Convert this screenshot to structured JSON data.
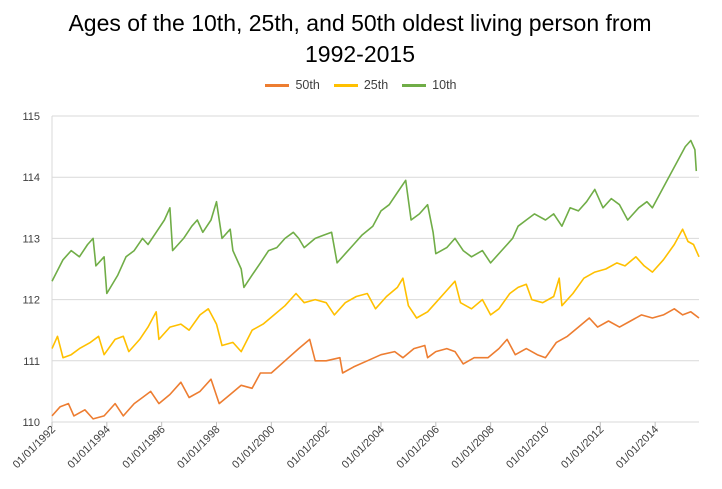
{
  "chart_data": {
    "type": "line",
    "title_lines": [
      "Ages of the 10th, 25th, and 50th oldest living person from",
      "1992-2015"
    ],
    "xlabel": "",
    "ylabel": "",
    "ylim": [
      110,
      115
    ],
    "y_ticks": [
      "110",
      "111",
      "112",
      "113",
      "114",
      "115"
    ],
    "x_ticks": [
      "01/01/1992",
      "01/01/1994",
      "01/01/1996",
      "01/01/1998",
      "01/01/2000",
      "01/01/2002",
      "01/01/2004",
      "01/01/2006",
      "01/01/2008",
      "01/01/2010",
      "01/01/2012",
      "01/01/2014"
    ],
    "xlim": [
      1992.0,
      2015.6
    ],
    "grid": "horizontal",
    "legend_position": "top",
    "series": [
      {
        "name": "50th",
        "color": "#ED7D31",
        "points": [
          [
            1992.0,
            110.1
          ],
          [
            1992.3,
            110.25
          ],
          [
            1992.6,
            110.3
          ],
          [
            1992.8,
            110.1
          ],
          [
            1993.2,
            110.2
          ],
          [
            1993.5,
            110.05
          ],
          [
            1993.9,
            110.1
          ],
          [
            1994.3,
            110.3
          ],
          [
            1994.6,
            110.1
          ],
          [
            1995.0,
            110.3
          ],
          [
            1995.3,
            110.4
          ],
          [
            1995.6,
            110.5
          ],
          [
            1995.9,
            110.3
          ],
          [
            1996.3,
            110.45
          ],
          [
            1996.7,
            110.65
          ],
          [
            1997.0,
            110.4
          ],
          [
            1997.4,
            110.5
          ],
          [
            1997.8,
            110.7
          ],
          [
            1998.1,
            110.3
          ],
          [
            1998.5,
            110.45
          ],
          [
            1998.9,
            110.6
          ],
          [
            1999.3,
            110.55
          ],
          [
            1999.6,
            110.8
          ],
          [
            2000.0,
            110.8
          ],
          [
            2000.5,
            111.0
          ],
          [
            2001.0,
            111.2
          ],
          [
            2001.4,
            111.35
          ],
          [
            2001.6,
            111.0
          ],
          [
            2002.0,
            111.0
          ],
          [
            2002.5,
            111.05
          ],
          [
            2002.6,
            110.8
          ],
          [
            2003.0,
            110.9
          ],
          [
            2003.5,
            111.0
          ],
          [
            2004.0,
            111.1
          ],
          [
            2004.5,
            111.15
          ],
          [
            2004.8,
            111.05
          ],
          [
            2005.2,
            111.2
          ],
          [
            2005.6,
            111.25
          ],
          [
            2005.7,
            111.05
          ],
          [
            2006.0,
            111.15
          ],
          [
            2006.4,
            111.2
          ],
          [
            2006.7,
            111.15
          ],
          [
            2007.0,
            110.95
          ],
          [
            2007.4,
            111.05
          ],
          [
            2007.9,
            111.05
          ],
          [
            2008.3,
            111.2
          ],
          [
            2008.6,
            111.35
          ],
          [
            2008.9,
            111.1
          ],
          [
            2009.3,
            111.2
          ],
          [
            2009.7,
            111.1
          ],
          [
            2010.0,
            111.05
          ],
          [
            2010.4,
            111.3
          ],
          [
            2010.8,
            111.4
          ],
          [
            2011.2,
            111.55
          ],
          [
            2011.6,
            111.7
          ],
          [
            2011.9,
            111.55
          ],
          [
            2012.3,
            111.65
          ],
          [
            2012.7,
            111.55
          ],
          [
            2013.1,
            111.65
          ],
          [
            2013.5,
            111.75
          ],
          [
            2013.9,
            111.7
          ],
          [
            2014.3,
            111.75
          ],
          [
            2014.7,
            111.85
          ],
          [
            2015.0,
            111.75
          ],
          [
            2015.3,
            111.8
          ],
          [
            2015.6,
            111.7
          ]
        ]
      },
      {
        "name": "25th",
        "color": "#FFC000",
        "points": [
          [
            1992.0,
            111.2
          ],
          [
            1992.2,
            111.4
          ],
          [
            1992.4,
            111.05
          ],
          [
            1992.7,
            111.1
          ],
          [
            1993.0,
            111.2
          ],
          [
            1993.4,
            111.3
          ],
          [
            1993.7,
            111.4
          ],
          [
            1993.9,
            111.1
          ],
          [
            1994.3,
            111.35
          ],
          [
            1994.6,
            111.4
          ],
          [
            1994.8,
            111.15
          ],
          [
            1995.2,
            111.35
          ],
          [
            1995.5,
            111.55
          ],
          [
            1995.8,
            111.8
          ],
          [
            1995.9,
            111.35
          ],
          [
            1996.3,
            111.55
          ],
          [
            1996.7,
            111.6
          ],
          [
            1997.0,
            111.5
          ],
          [
            1997.4,
            111.75
          ],
          [
            1997.7,
            111.85
          ],
          [
            1998.0,
            111.6
          ],
          [
            1998.2,
            111.25
          ],
          [
            1998.6,
            111.3
          ],
          [
            1998.9,
            111.15
          ],
          [
            1999.3,
            111.5
          ],
          [
            1999.7,
            111.6
          ],
          [
            2000.1,
            111.75
          ],
          [
            2000.5,
            111.9
          ],
          [
            2000.9,
            112.1
          ],
          [
            2001.2,
            111.95
          ],
          [
            2001.6,
            112.0
          ],
          [
            2002.0,
            111.95
          ],
          [
            2002.3,
            111.75
          ],
          [
            2002.7,
            111.95
          ],
          [
            2003.1,
            112.05
          ],
          [
            2003.5,
            112.1
          ],
          [
            2003.8,
            111.85
          ],
          [
            2004.2,
            112.05
          ],
          [
            2004.6,
            112.2
          ],
          [
            2004.8,
            112.35
          ],
          [
            2005.0,
            111.9
          ],
          [
            2005.3,
            111.7
          ],
          [
            2005.7,
            111.8
          ],
          [
            2006.0,
            111.95
          ],
          [
            2006.4,
            112.15
          ],
          [
            2006.7,
            112.3
          ],
          [
            2006.9,
            111.95
          ],
          [
            2007.3,
            111.85
          ],
          [
            2007.7,
            112.0
          ],
          [
            2008.0,
            111.75
          ],
          [
            2008.3,
            111.85
          ],
          [
            2008.7,
            112.1
          ],
          [
            2009.0,
            112.2
          ],
          [
            2009.3,
            112.25
          ],
          [
            2009.5,
            112.0
          ],
          [
            2009.9,
            111.95
          ],
          [
            2010.3,
            112.05
          ],
          [
            2010.5,
            112.35
          ],
          [
            2010.6,
            111.9
          ],
          [
            2011.0,
            112.1
          ],
          [
            2011.4,
            112.35
          ],
          [
            2011.8,
            112.45
          ],
          [
            2012.2,
            112.5
          ],
          [
            2012.6,
            112.6
          ],
          [
            2012.9,
            112.55
          ],
          [
            2013.3,
            112.7
          ],
          [
            2013.6,
            112.55
          ],
          [
            2013.9,
            112.45
          ],
          [
            2014.3,
            112.65
          ],
          [
            2014.7,
            112.9
          ],
          [
            2015.0,
            113.15
          ],
          [
            2015.2,
            112.95
          ],
          [
            2015.4,
            112.9
          ],
          [
            2015.6,
            112.7
          ]
        ]
      },
      {
        "name": "10th",
        "color": "#70AD47",
        "points": [
          [
            1992.0,
            112.3
          ],
          [
            1992.4,
            112.65
          ],
          [
            1992.7,
            112.8
          ],
          [
            1993.0,
            112.7
          ],
          [
            1993.3,
            112.9
          ],
          [
            1993.5,
            113.0
          ],
          [
            1993.6,
            112.55
          ],
          [
            1993.9,
            112.7
          ],
          [
            1994.0,
            112.1
          ],
          [
            1994.4,
            112.4
          ],
          [
            1994.7,
            112.7
          ],
          [
            1995.0,
            112.8
          ],
          [
            1995.3,
            113.0
          ],
          [
            1995.5,
            112.9
          ],
          [
            1995.8,
            113.1
          ],
          [
            1996.1,
            113.3
          ],
          [
            1996.3,
            113.5
          ],
          [
            1996.4,
            112.8
          ],
          [
            1996.8,
            113.0
          ],
          [
            1997.1,
            113.2
          ],
          [
            1997.3,
            113.3
          ],
          [
            1997.5,
            113.1
          ],
          [
            1997.8,
            113.3
          ],
          [
            1998.0,
            113.6
          ],
          [
            1998.2,
            113.0
          ],
          [
            1998.5,
            113.15
          ],
          [
            1998.6,
            112.8
          ],
          [
            1998.9,
            112.5
          ],
          [
            1999.0,
            112.2
          ],
          [
            1999.3,
            112.4
          ],
          [
            1999.6,
            112.6
          ],
          [
            1999.9,
            112.8
          ],
          [
            2000.2,
            112.85
          ],
          [
            2000.5,
            113.0
          ],
          [
            2000.8,
            113.1
          ],
          [
            2001.0,
            113.0
          ],
          [
            2001.2,
            112.85
          ],
          [
            2001.6,
            113.0
          ],
          [
            2001.9,
            113.05
          ],
          [
            2002.2,
            113.1
          ],
          [
            2002.4,
            112.6
          ],
          [
            2002.7,
            112.75
          ],
          [
            2003.0,
            112.9
          ],
          [
            2003.3,
            113.05
          ],
          [
            2003.7,
            113.2
          ],
          [
            2004.0,
            113.45
          ],
          [
            2004.3,
            113.55
          ],
          [
            2004.6,
            113.75
          ],
          [
            2004.9,
            113.95
          ],
          [
            2005.1,
            113.3
          ],
          [
            2005.4,
            113.4
          ],
          [
            2005.7,
            113.55
          ],
          [
            2005.9,
            113.1
          ],
          [
            2006.0,
            112.75
          ],
          [
            2006.4,
            112.85
          ],
          [
            2006.7,
            113.0
          ],
          [
            2007.0,
            112.8
          ],
          [
            2007.3,
            112.7
          ],
          [
            2007.7,
            112.8
          ],
          [
            2008.0,
            112.6
          ],
          [
            2008.4,
            112.8
          ],
          [
            2008.8,
            113.0
          ],
          [
            2009.0,
            113.2
          ],
          [
            2009.3,
            113.3
          ],
          [
            2009.6,
            113.4
          ],
          [
            2010.0,
            113.3
          ],
          [
            2010.3,
            113.4
          ],
          [
            2010.6,
            113.2
          ],
          [
            2010.9,
            113.5
          ],
          [
            2011.2,
            113.45
          ],
          [
            2011.5,
            113.6
          ],
          [
            2011.8,
            113.8
          ],
          [
            2012.1,
            113.5
          ],
          [
            2012.4,
            113.65
          ],
          [
            2012.7,
            113.55
          ],
          [
            2013.0,
            113.3
          ],
          [
            2013.4,
            113.5
          ],
          [
            2013.7,
            113.6
          ],
          [
            2013.9,
            113.5
          ],
          [
            2014.2,
            113.75
          ],
          [
            2014.5,
            114.0
          ],
          [
            2014.8,
            114.25
          ],
          [
            2015.1,
            114.5
          ],
          [
            2015.3,
            114.6
          ],
          [
            2015.45,
            114.45
          ],
          [
            2015.5,
            114.1
          ]
        ]
      }
    ]
  }
}
